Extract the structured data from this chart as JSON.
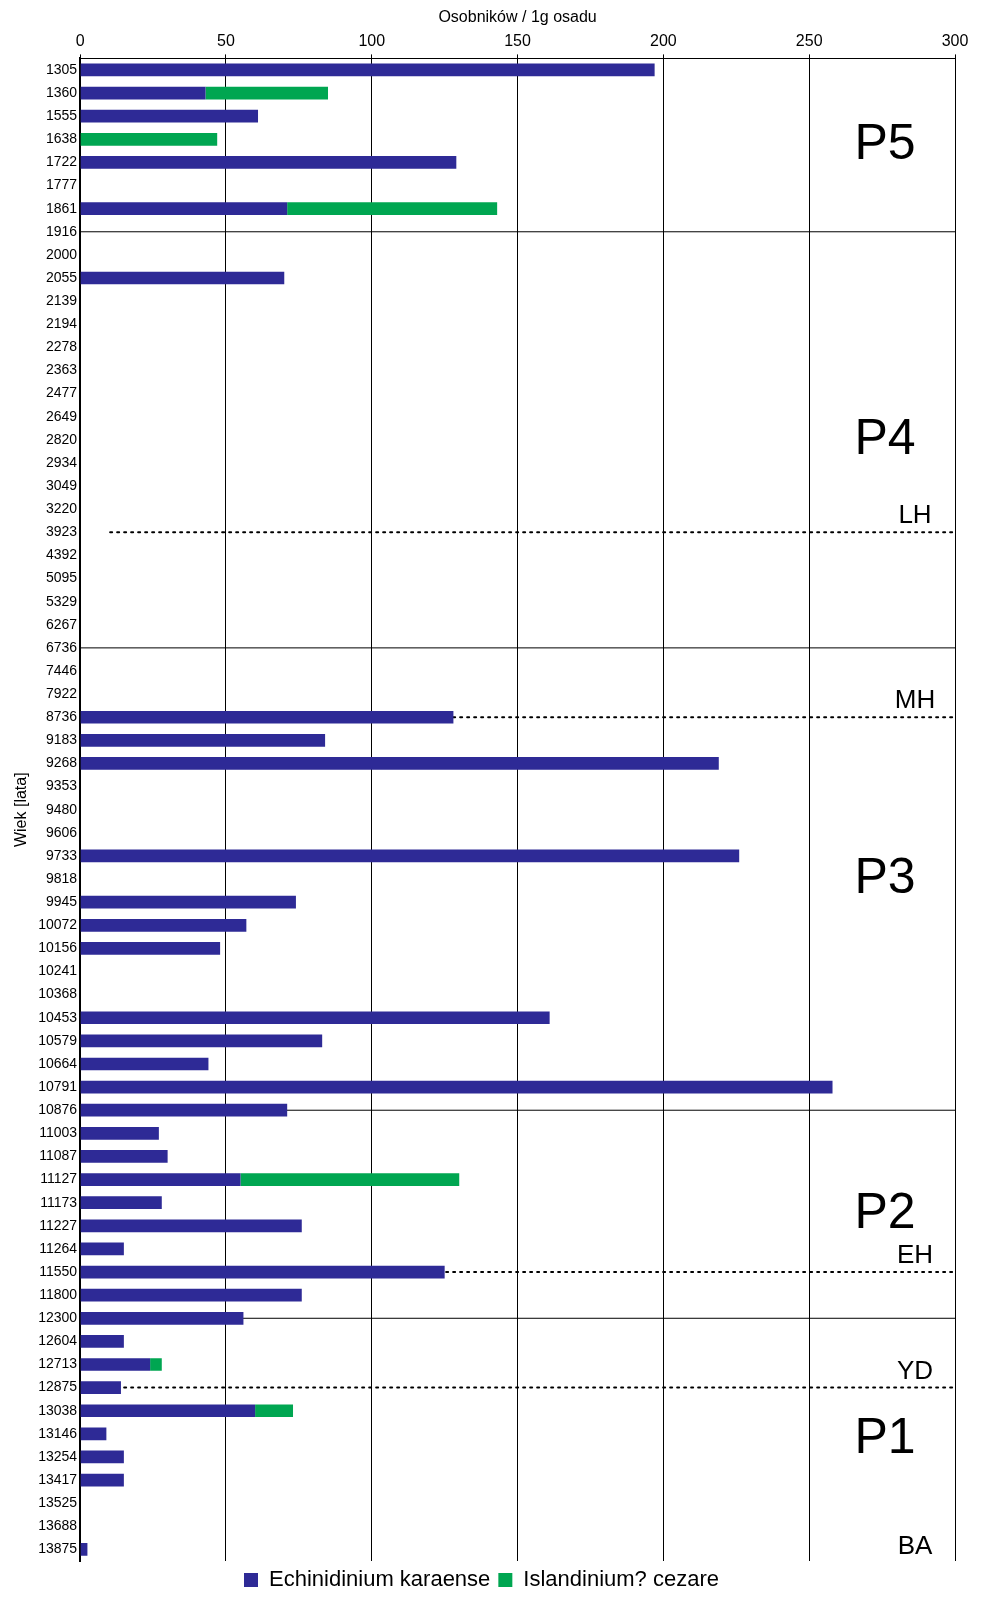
{
  "chart_data": {
    "type": "bar",
    "orientation": "horizontal",
    "stacked": true,
    "xlabel": "Osobników / 1g osadu",
    "ylabel": "Wiek [lata]",
    "categories": [
      "1305",
      "1360",
      "1555",
      "1638",
      "1722",
      "1777",
      "1861",
      "1916",
      "2000",
      "2055",
      "2139",
      "2194",
      "2278",
      "2363",
      "2477",
      "2649",
      "2820",
      "2934",
      "3049",
      "3220",
      "3923",
      "4392",
      "5095",
      "5329",
      "6267",
      "6736",
      "7446",
      "7922",
      "8736",
      "9183",
      "9268",
      "9353",
      "9480",
      "9606",
      "9733",
      "9818",
      "9945",
      "10072",
      "10156",
      "10241",
      "10368",
      "10453",
      "10579",
      "10664",
      "10791",
      "10876",
      "11003",
      "11087",
      "11127",
      "11173",
      "11227",
      "11264",
      "11550",
      "11800",
      "12300",
      "12604",
      "12713",
      "12875",
      "13038",
      "13146",
      "13254",
      "13417",
      "13525",
      "13688",
      "13875"
    ],
    "series": [
      {
        "name": "Echinidinium karaense",
        "color": "#2e2a96",
        "values": [
          197,
          43,
          61,
          null,
          129,
          null,
          71,
          null,
          null,
          70,
          null,
          null,
          null,
          null,
          null,
          null,
          null,
          null,
          null,
          null,
          null,
          null,
          null,
          null,
          null,
          null,
          null,
          null,
          128,
          84,
          219,
          null,
          null,
          null,
          226,
          null,
          74,
          57,
          48,
          null,
          null,
          161,
          83,
          44,
          258,
          71,
          27,
          30,
          55,
          28,
          76,
          15,
          125,
          76,
          56,
          15,
          24,
          14,
          60,
          9,
          15,
          15,
          null,
          null,
          2.5
        ]
      },
      {
        "name": "Islandinium? cezare",
        "color": "#00a651",
        "values": [
          null,
          42,
          null,
          47,
          null,
          null,
          72,
          null,
          null,
          null,
          null,
          null,
          null,
          null,
          null,
          null,
          null,
          null,
          null,
          null,
          null,
          null,
          null,
          null,
          null,
          null,
          null,
          null,
          null,
          null,
          null,
          null,
          null,
          null,
          null,
          null,
          null,
          null,
          null,
          null,
          null,
          null,
          null,
          null,
          null,
          null,
          null,
          null,
          75,
          null,
          null,
          null,
          null,
          null,
          null,
          null,
          4,
          null,
          13,
          null,
          null,
          null,
          null,
          null,
          null
        ]
      }
    ],
    "xlim": [
      0,
      300
    ],
    "xticks": [
      0,
      50,
      100,
      150,
      200,
      250,
      300
    ],
    "grid": "x",
    "legend": "bottom",
    "ref_lines": [
      {
        "axis": "y",
        "value": "1916",
        "line_style": "solid"
      },
      {
        "axis": "y",
        "value": "6736",
        "line_style": "solid"
      },
      {
        "axis": "y",
        "value": "10876",
        "line_style": "solid"
      },
      {
        "axis": "y",
        "value": "12300",
        "line_style": "solid"
      },
      {
        "axis": "y",
        "value": "3923",
        "label": "LH",
        "line_style": "dotted"
      },
      {
        "axis": "y",
        "value": "8736",
        "label": "MH",
        "line_style": "dotted"
      },
      {
        "axis": "y",
        "value": "11550",
        "label": "EH",
        "line_style": "dotted"
      },
      {
        "axis": "y",
        "value": "12875",
        "label": "YD",
        "line_style": "dotted"
      }
    ],
    "annotations": [
      "P5",
      "P4",
      "P3",
      "P2",
      "P1",
      "BA"
    ]
  }
}
